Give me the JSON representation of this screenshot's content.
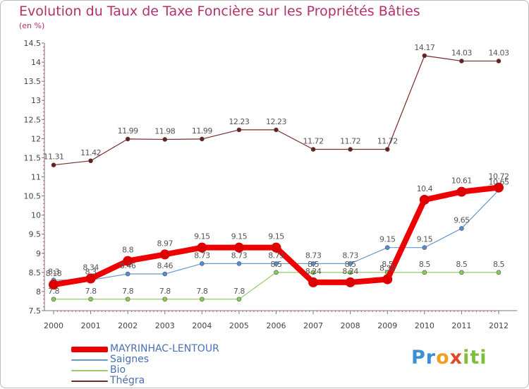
{
  "header": {
    "title": "Evolution du Taux de Taxe Foncière sur les Propriétés Bâties",
    "unit": "(en %)"
  },
  "logo": {
    "part1": "Pr",
    "part2": "o",
    "part3": "x",
    "part4": "iti"
  },
  "chart_data": {
    "type": "line",
    "title": "Evolution du Taux de Taxe Foncière sur les Propriétés Bâties",
    "ylabel": "(en %)",
    "xlabel": "",
    "x": [
      "2000",
      "2001",
      "2002",
      "2003",
      "2004",
      "2005",
      "2006",
      "2007",
      "2008",
      "2009",
      "2010",
      "2011",
      "2012"
    ],
    "ylim": [
      7.5,
      14.5
    ],
    "yticks": [
      "7.5",
      "8",
      "8.5",
      "9",
      "9.5",
      "10",
      "10.5",
      "11",
      "11.5",
      "12",
      "12.5",
      "13",
      "13.5",
      "14",
      "14.5"
    ],
    "grid": false,
    "series": [
      {
        "name": "MAYRINHAC-LENTOUR",
        "color": "#ee0000",
        "values": [
          8.18,
          8.34,
          8.8,
          8.97,
          9.15,
          9.15,
          9.15,
          8.24,
          8.24,
          8.32,
          10.4,
          10.61,
          10.72
        ],
        "labels": [
          "8.18",
          "8.34",
          "8.8",
          "8.97",
          "9.15",
          "9.15",
          "9.15",
          "8.24",
          "8.24",
          "8.32",
          "10.4",
          "10.61",
          "10.72"
        ]
      },
      {
        "name": "Saignes",
        "color": "#6699cc",
        "values": [
          8.3,
          8.3,
          8.46,
          8.46,
          8.73,
          8.73,
          8.73,
          8.73,
          8.73,
          9.15,
          9.15,
          9.65,
          10.65
        ],
        "labels": [
          "8.3",
          "8.3",
          "8.46",
          "8.46",
          "8.73",
          "8.73",
          "8.73",
          "8.73",
          "8.73",
          "9.15",
          "9.15",
          "9.65",
          "10.65"
        ]
      },
      {
        "name": "Bio",
        "color": "#99cc66",
        "values": [
          7.8,
          7.8,
          7.8,
          7.8,
          7.8,
          7.8,
          8.5,
          8.5,
          8.5,
          8.5,
          8.5,
          8.5,
          8.5
        ],
        "labels": [
          "7.8",
          "7.8",
          "7.8",
          "7.8",
          "7.8",
          "7.8",
          "8.5",
          "8.5",
          "8.5",
          "8.5",
          "8.5",
          "8.5",
          "8.5"
        ]
      },
      {
        "name": "Thégra",
        "color": "#7a2a2a",
        "values": [
          11.31,
          11.42,
          11.99,
          11.98,
          11.99,
          12.23,
          12.23,
          11.72,
          11.72,
          11.72,
          14.17,
          14.03,
          14.03
        ],
        "labels": [
          "11.31",
          "11.42",
          "11.99",
          "11.98",
          "11.99",
          "12.23",
          "12.23",
          "11.72",
          "11.72",
          "11.72",
          "14.17",
          "14.03",
          "14.03"
        ]
      }
    ]
  }
}
